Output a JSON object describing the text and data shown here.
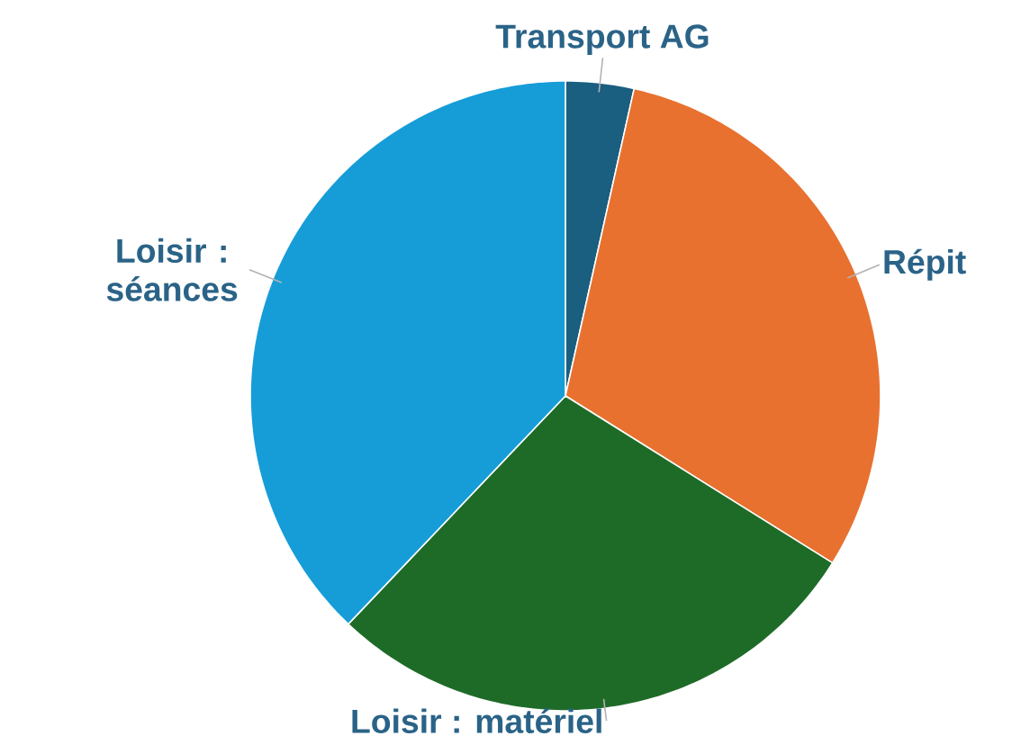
{
  "chart_data": {
    "type": "pie",
    "categories": [
      "Transport AG",
      "Répit",
      "Loisir : matériel",
      "Loisir : séances"
    ],
    "values": [
      3.5,
      30.4,
      28.2,
      37.9
    ],
    "colors": [
      "#1a5e80",
      "#e87130",
      "#1e6b28",
      "#169dd8"
    ]
  }
}
